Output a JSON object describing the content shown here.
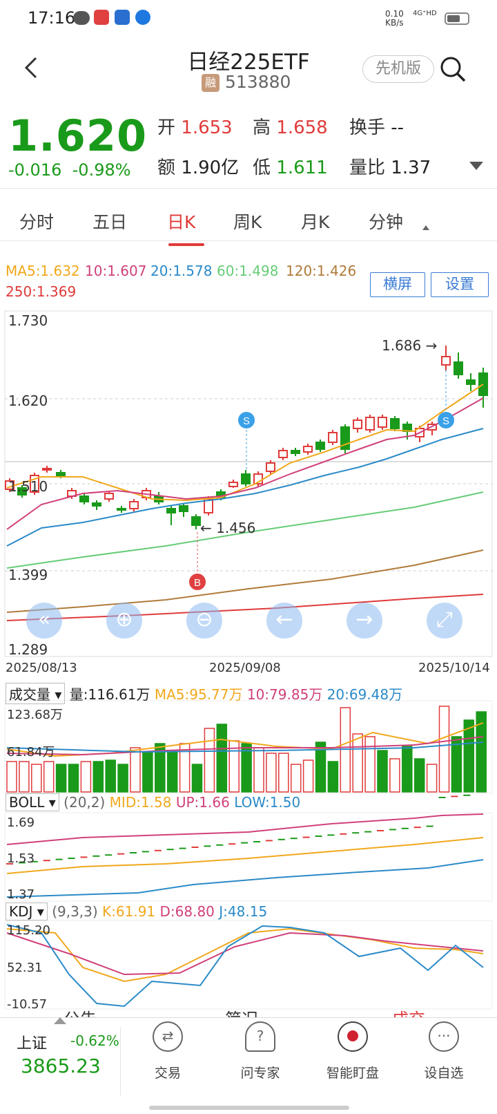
{
  "status": {
    "time": "17:16",
    "speed": "0.10",
    "speed_unit": "KB/s",
    "network": "4G⁺HD"
  },
  "header": {
    "back_icon": "chevron-left-icon",
    "title": "日经225ETF",
    "margin_badge": "融",
    "code": "513880",
    "pioneer_label": "先机版",
    "search_icon": "search-icon"
  },
  "quote": {
    "price": "1.620",
    "change": "-0.016",
    "change_pct": "-0.98%",
    "open_label": "开",
    "open": "1.653",
    "high_label": "高",
    "high": "1.658",
    "turnover_label": "换手",
    "turnover": "--",
    "amount_label": "额",
    "amount": "1.90亿",
    "low_label": "低",
    "low": "1.611",
    "vol_ratio_label": "量比",
    "vol_ratio": "1.37"
  },
  "tabs": [
    {
      "label": "分时"
    },
    {
      "label": "五日"
    },
    {
      "label": "日K"
    },
    {
      "label": "周K"
    },
    {
      "label": "月K"
    },
    {
      "label": "分钟"
    }
  ],
  "ma_legend": {
    "ma5": "MA5:1.632",
    "ma10": "10:1.607",
    "ma20": "20:1.578",
    "ma60": "60:1.498",
    "ma120": "120:1.426",
    "ma250": "250:1.369"
  },
  "buttons": {
    "landscape": "横屏",
    "settings": "设置"
  },
  "kline": {
    "y_labels": [
      "1.730",
      "1.620",
      "1.510",
      "1.399",
      "1.289"
    ],
    "dates": [
      "2025/08/13",
      "2025/09/08",
      "2025/10/14"
    ],
    "high_marker": "1.686",
    "low_marker": "1.456",
    "signals": [
      "S",
      "B",
      "S"
    ]
  },
  "volume": {
    "selector": "成交量",
    "amount": "量:116.61万",
    "ma5": "MA5:95.77万",
    "ma10": "10:79.85万",
    "ma20": "20:69.48万",
    "y_top": "123.68万",
    "y_mid": "61.84万"
  },
  "boll": {
    "selector": "BOLL",
    "params": "(20,2)",
    "mid": "MID:1.58",
    "up": "UP:1.66",
    "low": "LOW:1.50",
    "y_top": "1.69",
    "y_mid": "1.53",
    "y_bot": "1.37"
  },
  "kdj": {
    "selector": "KDJ",
    "params": "(9,3,3)",
    "k": "K:61.91",
    "d": "D:68.80",
    "j": "J:48.15",
    "y_top": "115.20",
    "y_mid": "52.31",
    "y_bot": "-10.57"
  },
  "peek_tabs": [
    "公告",
    "简况",
    "成交"
  ],
  "index": {
    "name": "上证",
    "change_pct": "-0.62%",
    "value": "3865.23"
  },
  "bottom_nav": [
    {
      "label": "交易",
      "icon": "trade-icon"
    },
    {
      "label": "问专家",
      "icon": "expert-icon"
    },
    {
      "label": "智能盯盘",
      "icon": "watch-eye-icon"
    },
    {
      "label": "设自选",
      "icon": "more-icon"
    }
  ],
  "colors": {
    "up": "#e03a3a",
    "down": "#1a9a1a",
    "ma5": "#f0a81c",
    "ma10": "#d0407a",
    "ma20": "#2a8ac8",
    "ma60": "#66cc77",
    "ma120": "#b07a3a",
    "ma250": "#e03a3a",
    "accent": "#3a7bd5"
  }
}
